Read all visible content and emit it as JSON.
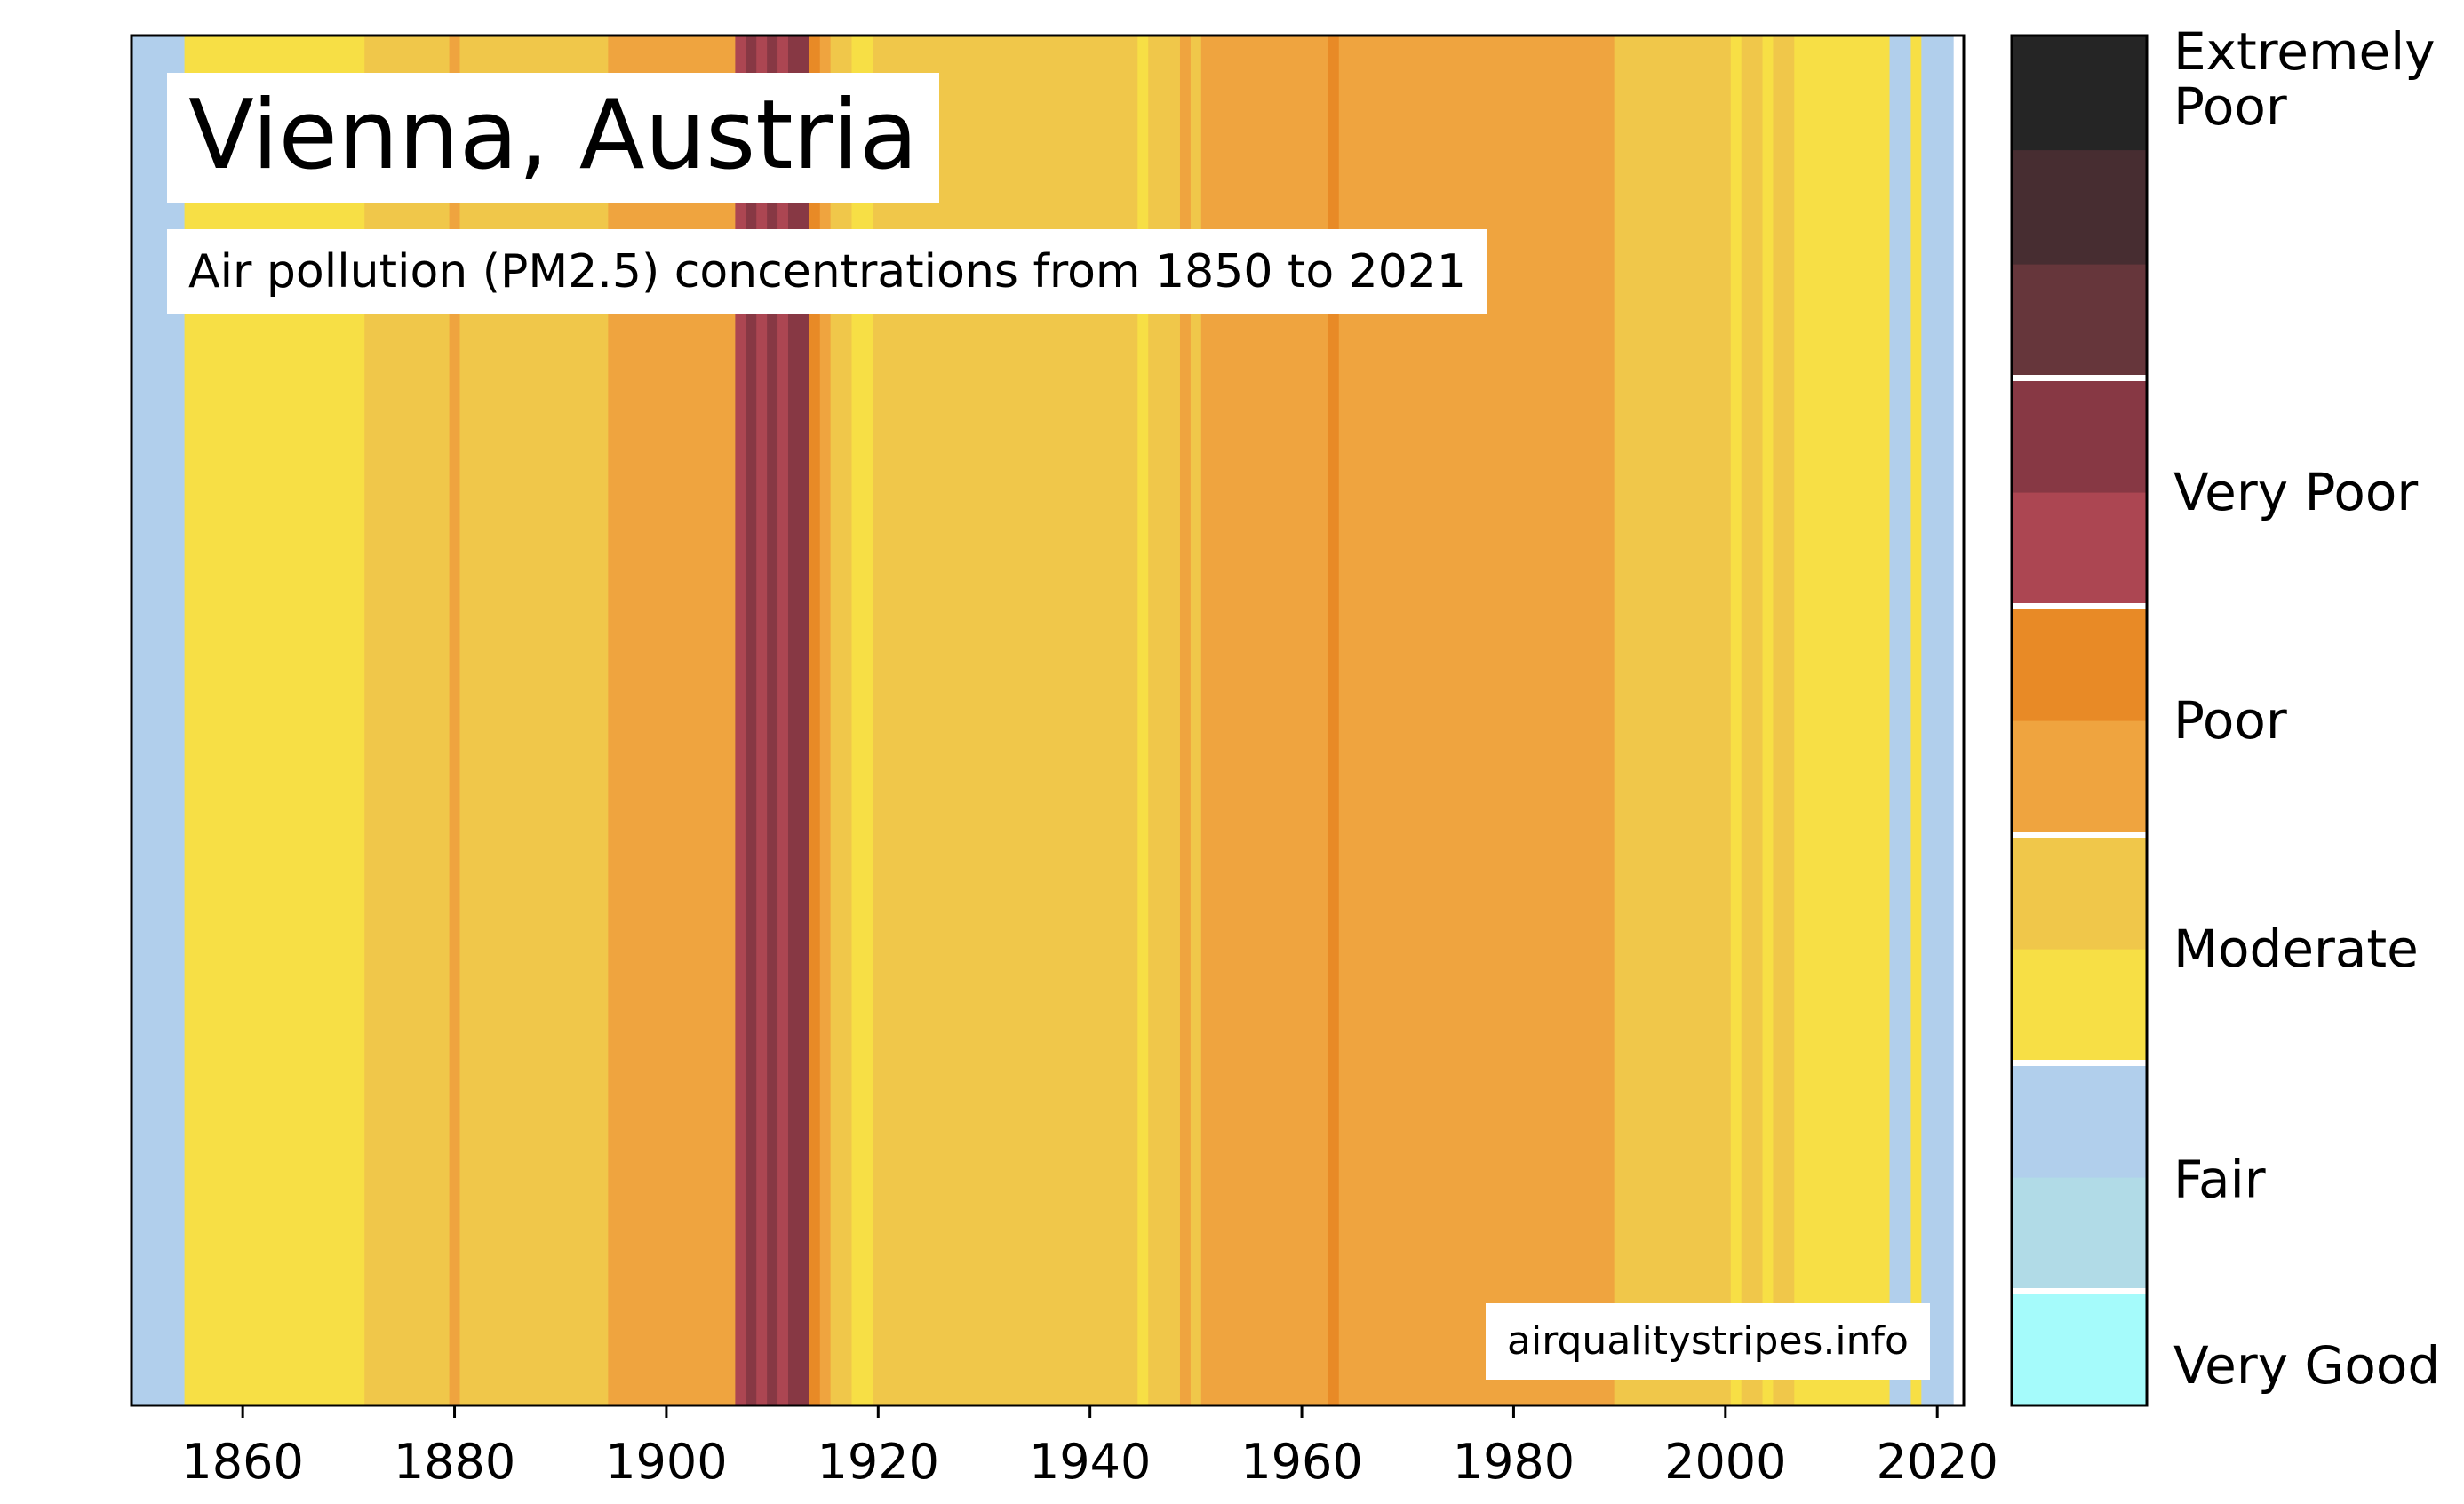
{
  "chart_data": {
    "type": "heatmap",
    "title": "Vienna, Austria",
    "subtitle": "Air pollution (PM2.5) concentrations from 1850 to 2021",
    "source": "airqualitystripes.info",
    "x_range": [
      1850,
      2021
    ],
    "x_ticks": [
      1860,
      1880,
      1900,
      1920,
      1940,
      1960,
      1980,
      2000,
      2020
    ],
    "categories": [
      {
        "key": "very-good",
        "label": "Very Good"
      },
      {
        "key": "fair",
        "label": "Fair"
      },
      {
        "key": "moderate",
        "label": "Moderate"
      },
      {
        "key": "poor",
        "label": "Poor"
      },
      {
        "key": "very-poor",
        "label": "Very Poor"
      },
      {
        "key": "extremely-poor",
        "label": "Extremely Poor"
      }
    ],
    "colorscale": [
      {
        "color": "#a5fbfb",
        "category": "very-good"
      },
      {
        "color": "#b1dbe7",
        "category": "fair"
      },
      {
        "color": "#b1cfec",
        "category": "fair"
      },
      {
        "color": "#f7df45",
        "category": "moderate"
      },
      {
        "color": "#f0c74a",
        "category": "moderate"
      },
      {
        "color": "#efa43f",
        "category": "poor"
      },
      {
        "color": "#e88a26",
        "category": "poor"
      },
      {
        "color": "#ac4652",
        "category": "very-poor"
      },
      {
        "color": "#873844",
        "category": "very-poor"
      },
      {
        "color": "#66363b",
        "category": "extremely-poor"
      },
      {
        "color": "#472d31",
        "category": "extremely-poor"
      },
      {
        "color": "#252525",
        "category": "extremely-poor"
      }
    ],
    "stripes": [
      {
        "from": 1850,
        "to": 1854,
        "level": 2
      },
      {
        "from": 1855,
        "to": 1871,
        "level": 3
      },
      {
        "from": 1872,
        "to": 1879,
        "level": 4
      },
      {
        "from": 1880,
        "to": 1880,
        "level": 5
      },
      {
        "from": 1881,
        "to": 1894,
        "level": 4
      },
      {
        "from": 1895,
        "to": 1906,
        "level": 5
      },
      {
        "from": 1907,
        "to": 1907,
        "level": 7
      },
      {
        "from": 1908,
        "to": 1908,
        "level": 8
      },
      {
        "from": 1909,
        "to": 1909,
        "level": 7
      },
      {
        "from": 1910,
        "to": 1910,
        "level": 8
      },
      {
        "from": 1911,
        "to": 1911,
        "level": 7
      },
      {
        "from": 1912,
        "to": 1913,
        "level": 8
      },
      {
        "from": 1914,
        "to": 1914,
        "level": 6
      },
      {
        "from": 1915,
        "to": 1915,
        "level": 5
      },
      {
        "from": 1916,
        "to": 1917,
        "level": 4
      },
      {
        "from": 1918,
        "to": 1919,
        "level": 3
      },
      {
        "from": 1920,
        "to": 1944,
        "level": 4
      },
      {
        "from": 1945,
        "to": 1945,
        "level": 3
      },
      {
        "from": 1946,
        "to": 1948,
        "level": 4
      },
      {
        "from": 1949,
        "to": 1949,
        "level": 5
      },
      {
        "from": 1950,
        "to": 1950,
        "level": 4
      },
      {
        "from": 1951,
        "to": 1962,
        "level": 5
      },
      {
        "from": 1963,
        "to": 1963,
        "level": 6
      },
      {
        "from": 1964,
        "to": 1989,
        "level": 5
      },
      {
        "from": 1990,
        "to": 2000,
        "level": 4
      },
      {
        "from": 2001,
        "to": 2001,
        "level": 3
      },
      {
        "from": 2002,
        "to": 2003,
        "level": 4
      },
      {
        "from": 2004,
        "to": 2004,
        "level": 3
      },
      {
        "from": 2005,
        "to": 2006,
        "level": 4
      },
      {
        "from": 2007,
        "to": 2015,
        "level": 3
      },
      {
        "from": 2016,
        "to": 2017,
        "level": 2
      },
      {
        "from": 2018,
        "to": 2018,
        "level": 3
      },
      {
        "from": 2019,
        "to": 2021,
        "level": 2
      }
    ]
  }
}
